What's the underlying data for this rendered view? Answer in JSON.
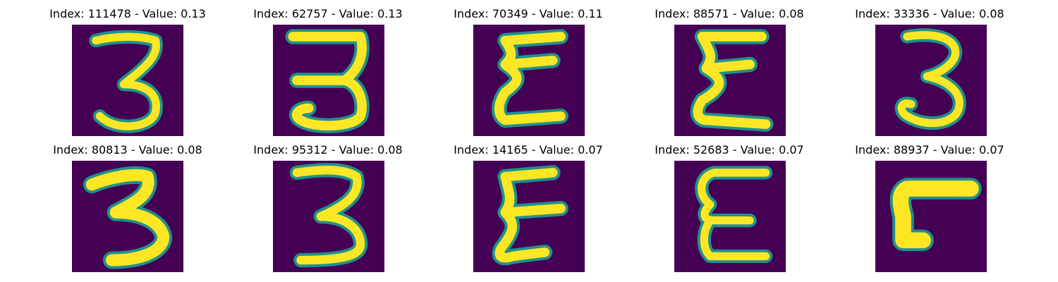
{
  "colors": {
    "background": "#440154",
    "stroke_outer": "#21918c",
    "stroke_inner": "#fde725"
  },
  "panels": [
    {
      "title": "Index: 111478 - Value: 0.13",
      "glyph": "three-icon"
    },
    {
      "title": "Index: 62757 - Value: 0.13",
      "glyph": "three-icon"
    },
    {
      "title": "Index: 70349 - Value: 0.11",
      "glyph": "epsilon-icon"
    },
    {
      "title": "Index: 88571 - Value: 0.08",
      "glyph": "epsilon-icon"
    },
    {
      "title": "Index: 33336 - Value: 0.08",
      "glyph": "three-icon"
    },
    {
      "title": "Index: 80813 - Value: 0.08",
      "glyph": "three-icon"
    },
    {
      "title": "Index: 95312 - Value: 0.08",
      "glyph": "three-icon"
    },
    {
      "title": "Index: 14165 - Value: 0.07",
      "glyph": "epsilon-icon"
    },
    {
      "title": "Index: 52683 - Value: 0.07",
      "glyph": "epsilon-icon"
    },
    {
      "title": "Index: 88937 - Value: 0.07",
      "glyph": "corner-icon"
    }
  ]
}
